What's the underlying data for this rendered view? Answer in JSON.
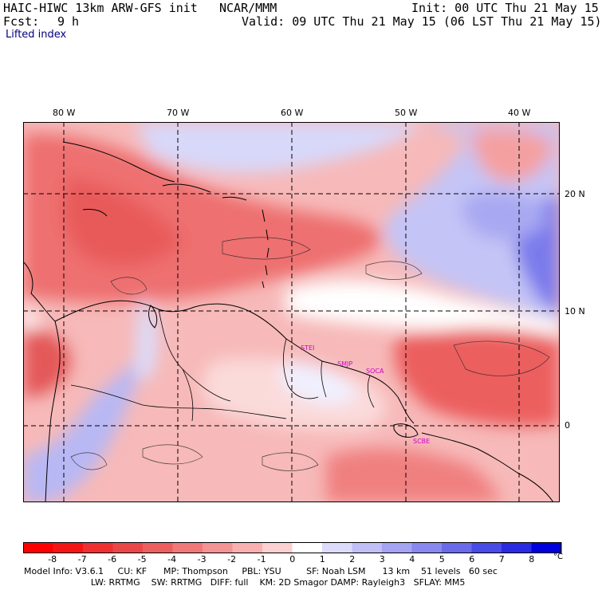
{
  "header": {
    "model_title": "HAIC-HIWC 13km ARW-GFS init",
    "org": "NCAR/MMM",
    "init": "Init: 00 UTC Thu 21 May 15",
    "fcst_label": "Fcst:",
    "fcst_value": "9 h",
    "valid": "Valid: 09 UTC Thu 21 May 15 (06 LST Thu 21 May 15)",
    "field": "Lifted index"
  },
  "map": {
    "lon_labels": [
      "80 W",
      "70 W",
      "60 W",
      "50 W",
      "40 W"
    ],
    "lat_labels": [
      "20 N",
      "10 N",
      "0"
    ],
    "stations": [
      "STEI",
      "SMJP",
      "SOCA",
      "SCBE"
    ],
    "colors": {
      "strong_neg": "#e44a4a",
      "mid_neg": "#f28a8a",
      "weak_neg": "#fbd0d0",
      "neutral": "#ffffff",
      "weak_pos": "#d8d8fa",
      "mid_pos": "#a0a0f0",
      "strong_pos": "#6060e6"
    }
  },
  "colorbar": {
    "unit": "°C",
    "ticks": [
      "-8",
      "-7",
      "-6",
      "-5",
      "-4",
      "-3",
      "-2",
      "-1",
      "0",
      "1",
      "2",
      "3",
      "4",
      "5",
      "6",
      "7",
      "8"
    ],
    "colors": [
      "#ff0000",
      "#f41414",
      "#ee3030",
      "#ea4848",
      "#ec5f5f",
      "#f07878",
      "#f49393",
      "#f8b0b0",
      "#fbd0d0",
      "#ffffff",
      "#dcdcfa",
      "#c0c0f6",
      "#a4a4f2",
      "#8888ee",
      "#6a6aea",
      "#4a4ae6",
      "#2a2ae0",
      "#0000dc"
    ]
  },
  "model_info": {
    "line1": "Model Info: V3.6.1     CU: KF      MP: Thompson     PBL: YSU         SF: Noah LSM      13 km    51 levels   60 sec",
    "line2": "                        LW: RRTMG    SW: RRTMG   DIFF: full    KM: 2D Smagor DAMP: Rayleigh3   SFLAY: MM5"
  }
}
